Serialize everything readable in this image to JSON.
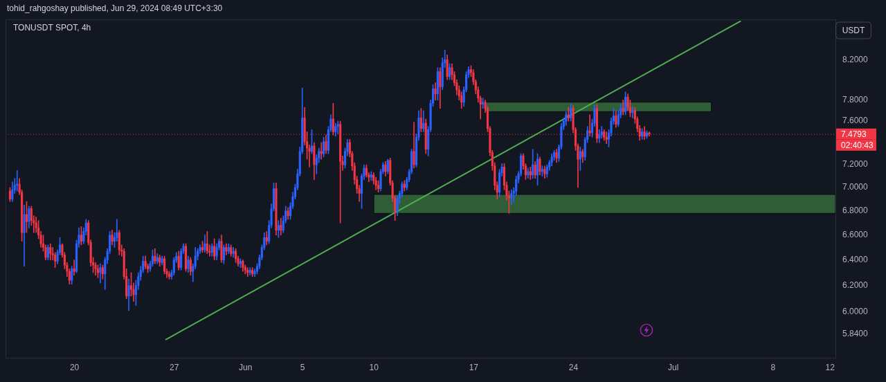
{
  "chart_data": {
    "type": "candlestick",
    "title": "TONUSDT SPOT, 4h",
    "ylabel": "USDT",
    "annotations": [
      "tohid_rahgoshay published, Jun 29, 2024 08:49 UTC+3:30",
      "02:40:43"
    ],
    "x": [
      "2024-05-15T11:30",
      "2024-05-15T15:30",
      "2024-05-15T19:30",
      "2024-05-15T23:30",
      "2024-05-16T03:30",
      "2024-05-16T07:30",
      "2024-05-16T11:30",
      "2024-05-16T15:30",
      "2024-05-16T19:30",
      "2024-05-16T23:30",
      "2024-05-17T03:30",
      "2024-05-17T07:30",
      "2024-05-17T11:30",
      "2024-05-17T15:30",
      "2024-05-17T19:30",
      "2024-05-17T23:30",
      "2024-05-18T03:30",
      "2024-05-18T07:30",
      "2024-05-18T11:30",
      "2024-05-18T15:30",
      "2024-05-18T19:30",
      "2024-05-18T23:30",
      "2024-05-19T03:30",
      "2024-05-19T07:30",
      "2024-05-19T11:30",
      "2024-05-19T15:30",
      "2024-05-19T19:30",
      "2024-05-19T23:30",
      "2024-05-20T03:30",
      "2024-05-20T07:30",
      "2024-05-20T11:30",
      "2024-05-20T15:30",
      "2024-05-20T19:30",
      "2024-05-20T23:30",
      "2024-05-21T03:30",
      "2024-05-21T07:30",
      "2024-05-21T11:30",
      "2024-05-21T15:30",
      "2024-05-21T19:30",
      "2024-05-21T23:30",
      "2024-05-22T03:30",
      "2024-05-22T07:30",
      "2024-05-22T11:30",
      "2024-05-22T15:30",
      "2024-05-22T19:30",
      "2024-05-22T23:30",
      "2024-05-23T03:30",
      "2024-05-23T07:30",
      "2024-05-23T11:30",
      "2024-05-23T15:30",
      "2024-05-23T19:30",
      "2024-05-23T23:30",
      "2024-05-24T03:30",
      "2024-05-24T07:30",
      "2024-05-24T11:30",
      "2024-05-24T15:30",
      "2024-05-24T19:30",
      "2024-05-24T23:30",
      "2024-05-25T03:30",
      "2024-05-25T07:30",
      "2024-05-25T11:30",
      "2024-05-25T15:30",
      "2024-05-25T19:30",
      "2024-05-25T23:30",
      "2024-05-26T03:30",
      "2024-05-26T07:30",
      "2024-05-26T11:30",
      "2024-05-26T15:30",
      "2024-05-26T19:30",
      "2024-05-26T23:30",
      "2024-05-27T03:30",
      "2024-05-27T07:30",
      "2024-05-27T11:30",
      "2024-05-27T15:30",
      "2024-05-27T19:30",
      "2024-05-27T23:30",
      "2024-05-28T03:30",
      "2024-05-28T07:30",
      "2024-05-28T11:30",
      "2024-05-28T15:30",
      "2024-05-28T19:30",
      "2024-05-28T23:30",
      "2024-05-29T03:30",
      "2024-05-29T07:30",
      "2024-05-29T11:30",
      "2024-05-29T15:30",
      "2024-05-29T19:30",
      "2024-05-29T23:30",
      "2024-05-30T03:30",
      "2024-05-30T07:30",
      "2024-05-30T11:30",
      "2024-05-30T15:30",
      "2024-05-30T19:30",
      "2024-05-30T23:30",
      "2024-05-31T03:30",
      "2024-05-31T07:30",
      "2024-05-31T11:30",
      "2024-05-31T15:30",
      "2024-05-31T19:30",
      "2024-05-31T23:30",
      "2024-06-01T03:30",
      "2024-06-01T07:30",
      "2024-06-01T11:30",
      "2024-06-01T15:30",
      "2024-06-01T19:30",
      "2024-06-01T23:30",
      "2024-06-02T03:30",
      "2024-06-02T07:30",
      "2024-06-02T11:30",
      "2024-06-02T15:30",
      "2024-06-02T19:30",
      "2024-06-02T23:30",
      "2024-06-03T03:30",
      "2024-06-03T07:30",
      "2024-06-03T11:30",
      "2024-06-03T15:30",
      "2024-06-03T19:30",
      "2024-06-03T23:30",
      "2024-06-04T03:30",
      "2024-06-04T07:30",
      "2024-06-04T11:30",
      "2024-06-04T15:30",
      "2024-06-04T19:30",
      "2024-06-04T23:30",
      "2024-06-05T03:30",
      "2024-06-05T07:30",
      "2024-06-05T11:30",
      "2024-06-05T15:30",
      "2024-06-05T19:30",
      "2024-06-05T23:30",
      "2024-06-06T03:30",
      "2024-06-06T07:30",
      "2024-06-06T11:30",
      "2024-06-06T15:30",
      "2024-06-06T19:30",
      "2024-06-06T23:30",
      "2024-06-07T03:30",
      "2024-06-07T07:30",
      "2024-06-07T11:30",
      "2024-06-07T15:30",
      "2024-06-07T19:30",
      "2024-06-07T23:30",
      "2024-06-08T03:30",
      "2024-06-08T07:30",
      "2024-06-08T11:30",
      "2024-06-08T15:30",
      "2024-06-08T19:30",
      "2024-06-08T23:30",
      "2024-06-09T03:30",
      "2024-06-09T07:30",
      "2024-06-09T11:30",
      "2024-06-09T15:30",
      "2024-06-09T19:30",
      "2024-06-09T23:30",
      "2024-06-10T03:30",
      "2024-06-10T07:30",
      "2024-06-10T11:30",
      "2024-06-10T15:30",
      "2024-06-10T19:30",
      "2024-06-10T23:30",
      "2024-06-11T03:30",
      "2024-06-11T07:30",
      "2024-06-11T11:30",
      "2024-06-11T15:30",
      "2024-06-11T19:30",
      "2024-06-11T23:30",
      "2024-06-12T03:30",
      "2024-06-12T07:30",
      "2024-06-12T11:30",
      "2024-06-12T15:30",
      "2024-06-12T19:30",
      "2024-06-12T23:30",
      "2024-06-13T03:30",
      "2024-06-13T07:30",
      "2024-06-13T11:30",
      "2024-06-13T15:30",
      "2024-06-13T19:30",
      "2024-06-13T23:30",
      "2024-06-14T03:30",
      "2024-06-14T07:30",
      "2024-06-14T11:30",
      "2024-06-14T15:30",
      "2024-06-14T19:30",
      "2024-06-14T23:30",
      "2024-06-15T03:30",
      "2024-06-15T07:30",
      "2024-06-15T11:30",
      "2024-06-15T15:30",
      "2024-06-15T19:30",
      "2024-06-15T23:30",
      "2024-06-16T03:30",
      "2024-06-16T07:30",
      "2024-06-16T11:30",
      "2024-06-16T15:30",
      "2024-06-16T19:30",
      "2024-06-16T23:30",
      "2024-06-17T03:30",
      "2024-06-17T07:30",
      "2024-06-17T11:30",
      "2024-06-17T15:30",
      "2024-06-17T19:30",
      "2024-06-17T23:30",
      "2024-06-18T03:30",
      "2024-06-18T07:30",
      "2024-06-18T11:30",
      "2024-06-18T15:30",
      "2024-06-18T19:30",
      "2024-06-18T23:30",
      "2024-06-19T03:30",
      "2024-06-19T07:30",
      "2024-06-19T11:30",
      "2024-06-19T15:30",
      "2024-06-19T19:30",
      "2024-06-19T23:30",
      "2024-06-20T03:30",
      "2024-06-20T07:30",
      "2024-06-20T11:30",
      "2024-06-20T15:30",
      "2024-06-20T19:30",
      "2024-06-20T23:30",
      "2024-06-21T03:30",
      "2024-06-21T07:30",
      "2024-06-21T11:30",
      "2024-06-21T15:30",
      "2024-06-21T19:30",
      "2024-06-21T23:30",
      "2024-06-22T03:30",
      "2024-06-22T07:30",
      "2024-06-22T11:30",
      "2024-06-22T15:30",
      "2024-06-22T19:30",
      "2024-06-22T23:30",
      "2024-06-23T03:30",
      "2024-06-23T07:30",
      "2024-06-23T11:30",
      "2024-06-23T15:30",
      "2024-06-23T19:30",
      "2024-06-23T23:30",
      "2024-06-24T03:30",
      "2024-06-24T07:30",
      "2024-06-24T11:30",
      "2024-06-24T15:30",
      "2024-06-24T19:30",
      "2024-06-24T23:30",
      "2024-06-25T03:30",
      "2024-06-25T07:30",
      "2024-06-25T11:30",
      "2024-06-25T15:30",
      "2024-06-25T19:30",
      "2024-06-25T23:30",
      "2024-06-26T03:30",
      "2024-06-26T07:30",
      "2024-06-26T11:30",
      "2024-06-26T15:30",
      "2024-06-26T19:30",
      "2024-06-26T23:30",
      "2024-06-27T03:30",
      "2024-06-27T07:30",
      "2024-06-27T11:30",
      "2024-06-27T15:30",
      "2024-06-27T19:30",
      "2024-06-27T23:30",
      "2024-06-28T03:30",
      "2024-06-28T07:30",
      "2024-06-28T11:30",
      "2024-06-28T15:30",
      "2024-06-28T19:30",
      "2024-06-28T23:30",
      "2024-06-29T03:30",
      "2024-06-29T07:30"
    ],
    "ohlc": [
      [
        6.97,
        7.0,
        6.88,
        6.9
      ],
      [
        6.9,
        7.05,
        6.88,
        6.98
      ],
      [
        6.98,
        7.08,
        6.95,
        7.02
      ],
      [
        7.02,
        7.15,
        6.97,
        7.03
      ],
      [
        7.03,
        7.08,
        6.94,
        6.96
      ],
      [
        6.96,
        6.98,
        6.55,
        6.62
      ],
      [
        6.62,
        6.85,
        6.35,
        6.77
      ],
      [
        6.77,
        6.88,
        6.62,
        6.71
      ],
      [
        6.71,
        6.84,
        6.66,
        6.82
      ],
      [
        6.82,
        6.84,
        6.68,
        6.72
      ],
      [
        6.72,
        6.76,
        6.62,
        6.7
      ],
      [
        6.7,
        6.75,
        6.62,
        6.66
      ],
      [
        6.66,
        6.72,
        6.57,
        6.6
      ],
      [
        6.6,
        6.63,
        6.5,
        6.53
      ],
      [
        6.53,
        6.6,
        6.47,
        6.5
      ],
      [
        6.5,
        6.52,
        6.4,
        6.42
      ],
      [
        6.42,
        6.52,
        6.4,
        6.5
      ],
      [
        6.5,
        6.53,
        6.4,
        6.45
      ],
      [
        6.45,
        6.5,
        6.4,
        6.44
      ],
      [
        6.44,
        6.46,
        6.34,
        6.39
      ],
      [
        6.39,
        6.48,
        6.37,
        6.46
      ],
      [
        6.46,
        6.58,
        6.44,
        6.52
      ],
      [
        6.52,
        6.53,
        6.42,
        6.44
      ],
      [
        6.44,
        6.46,
        6.33,
        6.36
      ],
      [
        6.36,
        6.38,
        6.27,
        6.31
      ],
      [
        6.31,
        6.33,
        6.21,
        6.24
      ],
      [
        6.24,
        6.35,
        6.21,
        6.33
      ],
      [
        6.33,
        6.4,
        6.28,
        6.31
      ],
      [
        6.31,
        6.56,
        6.3,
        6.53
      ],
      [
        6.53,
        6.66,
        6.5,
        6.6
      ],
      [
        6.6,
        6.67,
        6.52,
        6.55
      ],
      [
        6.55,
        6.66,
        6.53,
        6.63
      ],
      [
        6.63,
        6.73,
        6.6,
        6.7
      ],
      [
        6.7,
        6.72,
        6.52,
        6.54
      ],
      [
        6.54,
        6.56,
        6.35,
        6.38
      ],
      [
        6.38,
        6.42,
        6.3,
        6.36
      ],
      [
        6.36,
        6.38,
        6.28,
        6.33
      ],
      [
        6.33,
        6.36,
        6.26,
        6.3
      ],
      [
        6.3,
        6.37,
        6.22,
        6.34
      ],
      [
        6.34,
        6.36,
        6.25,
        6.29
      ],
      [
        6.29,
        6.42,
        6.17,
        6.4
      ],
      [
        6.4,
        6.49,
        6.37,
        6.47
      ],
      [
        6.47,
        6.63,
        6.45,
        6.6
      ],
      [
        6.6,
        6.64,
        6.52,
        6.55
      ],
      [
        6.55,
        6.62,
        6.5,
        6.58
      ],
      [
        6.58,
        6.73,
        6.55,
        6.62
      ],
      [
        6.62,
        6.64,
        6.44,
        6.48
      ],
      [
        6.48,
        6.52,
        6.43,
        6.47
      ],
      [
        6.47,
        6.49,
        6.25,
        6.27
      ],
      [
        6.27,
        6.33,
        6.1,
        6.12
      ],
      [
        6.12,
        6.25,
        6.01,
        6.2
      ],
      [
        6.2,
        6.3,
        6.12,
        6.17
      ],
      [
        6.17,
        6.22,
        6.08,
        6.13
      ],
      [
        6.13,
        6.24,
        6.05,
        6.2
      ],
      [
        6.2,
        6.3,
        6.17,
        6.27
      ],
      [
        6.27,
        6.35,
        6.24,
        6.32
      ],
      [
        6.32,
        6.43,
        6.3,
        6.39
      ],
      [
        6.39,
        6.43,
        6.33,
        6.35
      ],
      [
        6.35,
        6.37,
        6.3,
        6.33
      ],
      [
        6.33,
        6.39,
        6.31,
        6.37
      ],
      [
        6.37,
        6.48,
        6.35,
        6.43
      ],
      [
        6.43,
        6.49,
        6.37,
        6.39
      ],
      [
        6.39,
        6.45,
        6.37,
        6.42
      ],
      [
        6.42,
        6.44,
        6.35,
        6.38
      ],
      [
        6.38,
        6.43,
        6.36,
        6.41
      ],
      [
        6.41,
        6.43,
        6.29,
        6.31
      ],
      [
        6.31,
        6.33,
        6.26,
        6.29
      ],
      [
        6.29,
        6.31,
        6.25,
        6.27
      ],
      [
        6.27,
        6.32,
        6.25,
        6.3
      ],
      [
        6.3,
        6.42,
        6.28,
        6.4
      ],
      [
        6.4,
        6.46,
        6.38,
        6.43
      ],
      [
        6.43,
        6.47,
        6.32,
        6.34
      ],
      [
        6.34,
        6.49,
        6.32,
        6.47
      ],
      [
        6.47,
        6.53,
        6.45,
        6.51
      ],
      [
        6.51,
        6.53,
        6.31,
        6.33
      ],
      [
        6.33,
        6.43,
        6.3,
        6.4
      ],
      [
        6.4,
        6.42,
        6.28,
        6.31
      ],
      [
        6.31,
        6.37,
        6.23,
        6.35
      ],
      [
        6.35,
        6.5,
        6.33,
        6.43
      ],
      [
        6.43,
        6.49,
        6.4,
        6.47
      ],
      [
        6.47,
        6.52,
        6.45,
        6.5
      ],
      [
        6.5,
        6.55,
        6.46,
        6.48
      ],
      [
        6.48,
        6.6,
        6.46,
        6.53
      ],
      [
        6.53,
        6.63,
        6.45,
        6.47
      ],
      [
        6.47,
        6.52,
        6.43,
        6.46
      ],
      [
        6.46,
        6.53,
        6.43,
        6.51
      ],
      [
        6.51,
        6.57,
        6.4,
        6.43
      ],
      [
        6.43,
        6.53,
        6.4,
        6.5
      ],
      [
        6.5,
        6.57,
        6.48,
        6.55
      ],
      [
        6.55,
        6.6,
        6.38,
        6.4
      ],
      [
        6.4,
        6.52,
        6.37,
        6.5
      ],
      [
        6.5,
        6.53,
        6.44,
        6.47
      ],
      [
        6.47,
        6.53,
        6.45,
        6.5
      ],
      [
        6.5,
        6.52,
        6.43,
        6.45
      ],
      [
        6.45,
        6.5,
        6.42,
        6.47
      ],
      [
        6.47,
        6.49,
        6.38,
        6.41
      ],
      [
        6.41,
        6.43,
        6.35,
        6.37
      ],
      [
        6.37,
        6.41,
        6.34,
        6.39
      ],
      [
        6.39,
        6.4,
        6.31,
        6.34
      ],
      [
        6.34,
        6.36,
        6.29,
        6.32
      ],
      [
        6.32,
        6.34,
        6.27,
        6.3
      ],
      [
        6.3,
        6.34,
        6.28,
        6.32
      ],
      [
        6.32,
        6.34,
        6.27,
        6.29
      ],
      [
        6.29,
        6.33,
        6.27,
        6.31
      ],
      [
        6.31,
        6.37,
        6.29,
        6.35
      ],
      [
        6.35,
        6.44,
        6.33,
        6.42
      ],
      [
        6.42,
        6.52,
        6.4,
        6.5
      ],
      [
        6.5,
        6.62,
        6.48,
        6.58
      ],
      [
        6.58,
        6.63,
        6.52,
        6.55
      ],
      [
        6.55,
        6.72,
        6.53,
        6.68
      ],
      [
        6.68,
        6.86,
        6.66,
        6.82
      ],
      [
        6.82,
        7.04,
        6.8,
        6.99
      ],
      [
        6.99,
        7.04,
        6.6,
        6.64
      ],
      [
        6.64,
        6.72,
        6.58,
        6.68
      ],
      [
        6.68,
        6.74,
        6.6,
        6.64
      ],
      [
        6.64,
        6.76,
        6.62,
        6.72
      ],
      [
        6.72,
        6.84,
        6.7,
        6.8
      ],
      [
        6.8,
        6.83,
        6.73,
        6.76
      ],
      [
        6.76,
        6.87,
        6.73,
        6.84
      ],
      [
        6.84,
        6.96,
        6.82,
        6.92
      ],
      [
        6.92,
        7.03,
        6.9,
        7.0
      ],
      [
        7.0,
        7.16,
        6.98,
        7.12
      ],
      [
        7.12,
        7.36,
        7.1,
        7.32
      ],
      [
        7.32,
        7.92,
        7.3,
        7.63
      ],
      [
        7.63,
        7.73,
        7.38,
        7.41
      ],
      [
        7.41,
        7.5,
        7.25,
        7.35
      ],
      [
        7.35,
        7.38,
        7.18,
        7.32
      ],
      [
        7.32,
        7.52,
        7.3,
        7.37
      ],
      [
        7.37,
        7.4,
        7.07,
        7.2
      ],
      [
        7.2,
        7.29,
        7.12,
        7.26
      ],
      [
        7.26,
        7.35,
        7.22,
        7.32
      ],
      [
        7.32,
        7.4,
        7.25,
        7.3
      ],
      [
        7.3,
        7.45,
        7.27,
        7.41
      ],
      [
        7.41,
        7.47,
        7.3,
        7.33
      ],
      [
        7.33,
        7.55,
        7.3,
        7.52
      ],
      [
        7.52,
        7.66,
        7.5,
        7.62
      ],
      [
        7.62,
        7.77,
        7.47,
        7.5
      ],
      [
        7.5,
        7.58,
        7.46,
        7.55
      ],
      [
        7.55,
        7.6,
        7.48,
        7.57
      ],
      [
        7.57,
        7.6,
        6.7,
        7.23
      ],
      [
        7.23,
        7.28,
        7.15,
        7.2
      ],
      [
        7.2,
        7.35,
        7.17,
        7.32
      ],
      [
        7.32,
        7.43,
        7.28,
        7.4
      ],
      [
        7.4,
        7.43,
        7.27,
        7.3
      ],
      [
        7.3,
        7.32,
        7.15,
        7.19
      ],
      [
        7.19,
        7.22,
        7.03,
        7.07
      ],
      [
        7.07,
        7.1,
        6.95,
        6.99
      ],
      [
        6.99,
        7.02,
        6.88,
        6.95
      ],
      [
        6.95,
        7.12,
        6.82,
        7.1
      ],
      [
        7.1,
        7.2,
        7.07,
        7.17
      ],
      [
        7.17,
        7.2,
        7.09,
        7.11
      ],
      [
        7.11,
        7.13,
        7.05,
        7.09
      ],
      [
        7.09,
        7.14,
        7.06,
        7.11
      ],
      [
        7.11,
        7.13,
        7.03,
        7.06
      ],
      [
        7.06,
        7.09,
        6.98,
        7.02
      ],
      [
        7.02,
        7.06,
        6.96,
        6.99
      ],
      [
        6.99,
        7.16,
        6.97,
        7.14
      ],
      [
        7.14,
        7.22,
        7.12,
        7.2
      ],
      [
        7.2,
        7.23,
        7.1,
        7.14
      ],
      [
        7.14,
        7.25,
        7.12,
        7.24
      ],
      [
        7.24,
        7.26,
        7.02,
        7.04
      ],
      [
        7.04,
        7.06,
        6.88,
        6.91
      ],
      [
        6.91,
        6.93,
        6.72,
        6.8
      ],
      [
        6.8,
        6.93,
        6.76,
        6.91
      ],
      [
        6.91,
        6.97,
        6.86,
        6.95
      ],
      [
        6.95,
        7.05,
        6.92,
        7.03
      ],
      [
        7.03,
        7.06,
        6.97,
        7.0
      ],
      [
        7.0,
        7.09,
        6.98,
        7.07
      ],
      [
        7.07,
        7.16,
        7.05,
        7.14
      ],
      [
        7.14,
        7.34,
        7.12,
        7.32
      ],
      [
        7.32,
        7.59,
        7.17,
        7.2
      ],
      [
        7.2,
        7.48,
        7.18,
        7.45
      ],
      [
        7.45,
        7.7,
        7.42,
        7.63
      ],
      [
        7.63,
        7.72,
        7.5,
        7.53
      ],
      [
        7.53,
        7.7,
        7.5,
        7.58
      ],
      [
        7.58,
        7.62,
        7.3,
        7.34
      ],
      [
        7.34,
        7.55,
        7.28,
        7.52
      ],
      [
        7.52,
        7.8,
        7.5,
        7.77
      ],
      [
        7.77,
        7.95,
        7.74,
        7.91
      ],
      [
        7.91,
        7.97,
        7.8,
        7.86
      ],
      [
        7.86,
        8.12,
        7.8,
        8.08
      ],
      [
        8.08,
        8.12,
        7.72,
        7.93
      ],
      [
        7.93,
        8.22,
        7.9,
        8.17
      ],
      [
        8.17,
        8.3,
        8.12,
        8.2
      ],
      [
        8.2,
        8.25,
        8.0,
        8.03
      ],
      [
        8.03,
        8.16,
        8.0,
        8.12
      ],
      [
        8.12,
        8.16,
        8.0,
        8.05
      ],
      [
        8.05,
        8.08,
        7.94,
        7.97
      ],
      [
        7.97,
        8.0,
        7.85,
        7.9
      ],
      [
        7.9,
        7.94,
        7.8,
        7.84
      ],
      [
        7.84,
        7.88,
        7.72,
        7.78
      ],
      [
        7.78,
        7.93,
        7.74,
        7.9
      ],
      [
        7.9,
        8.08,
        7.88,
        8.05
      ],
      [
        8.05,
        8.13,
        8.02,
        8.1
      ],
      [
        8.1,
        8.14,
        8.03,
        8.07
      ],
      [
        8.07,
        8.1,
        7.95,
        7.98
      ],
      [
        7.98,
        8.0,
        7.86,
        7.9
      ],
      [
        7.9,
        7.93,
        7.78,
        7.82
      ],
      [
        7.82,
        7.84,
        7.62,
        7.76
      ],
      [
        7.76,
        7.82,
        7.72,
        7.78
      ],
      [
        7.78,
        7.8,
        7.68,
        7.72
      ],
      [
        7.72,
        7.74,
        7.5,
        7.53
      ],
      [
        7.53,
        7.55,
        7.28,
        7.31
      ],
      [
        7.31,
        7.33,
        7.15,
        7.19
      ],
      [
        7.19,
        7.22,
        6.98,
        7.02
      ],
      [
        7.02,
        7.05,
        6.9,
        6.96
      ],
      [
        6.96,
        7.16,
        6.92,
        7.13
      ],
      [
        7.13,
        7.21,
        7.1,
        7.18
      ],
      [
        7.18,
        7.21,
        6.98,
        7.02
      ],
      [
        7.02,
        7.05,
        6.89,
        6.93
      ],
      [
        6.93,
        6.97,
        6.78,
        6.91
      ],
      [
        6.91,
        6.98,
        6.85,
        6.95
      ],
      [
        6.95,
        7.0,
        6.88,
        6.97
      ],
      [
        6.97,
        7.1,
        6.93,
        7.07
      ],
      [
        7.07,
        7.14,
        7.04,
        7.12
      ],
      [
        7.12,
        7.3,
        7.1,
        7.28
      ],
      [
        7.28,
        7.3,
        7.16,
        7.19
      ],
      [
        7.19,
        7.21,
        7.07,
        7.11
      ],
      [
        7.11,
        7.17,
        7.08,
        7.14
      ],
      [
        7.14,
        7.18,
        7.07,
        7.11
      ],
      [
        7.11,
        7.34,
        7.08,
        7.2
      ],
      [
        7.2,
        7.23,
        7.08,
        7.11
      ],
      [
        7.11,
        7.3,
        7.02,
        7.25
      ],
      [
        7.25,
        7.27,
        7.11,
        7.14
      ],
      [
        7.14,
        7.19,
        7.1,
        7.16
      ],
      [
        7.16,
        7.19,
        7.08,
        7.12
      ],
      [
        7.12,
        7.2,
        7.09,
        7.18
      ],
      [
        7.18,
        7.24,
        7.15,
        7.22
      ],
      [
        7.22,
        7.3,
        7.19,
        7.27
      ],
      [
        7.27,
        7.33,
        7.24,
        7.31
      ],
      [
        7.31,
        7.34,
        7.22,
        7.26
      ],
      [
        7.26,
        7.38,
        7.23,
        7.36
      ],
      [
        7.36,
        7.58,
        7.34,
        7.55
      ],
      [
        7.55,
        7.63,
        7.52,
        7.6
      ],
      [
        7.6,
        7.69,
        7.56,
        7.66
      ],
      [
        7.66,
        7.73,
        7.6,
        7.63
      ],
      [
        7.63,
        7.76,
        7.6,
        7.72
      ],
      [
        7.72,
        7.75,
        7.49,
        7.52
      ],
      [
        7.52,
        7.54,
        7.33,
        7.37
      ],
      [
        7.37,
        7.39,
        7.0,
        7.25
      ],
      [
        7.25,
        7.36,
        7.15,
        7.32
      ],
      [
        7.32,
        7.34,
        7.22,
        7.27
      ],
      [
        7.27,
        7.45,
        7.24,
        7.43
      ],
      [
        7.43,
        7.55,
        7.4,
        7.51
      ],
      [
        7.51,
        7.66,
        7.46,
        7.49
      ],
      [
        7.49,
        7.62,
        7.45,
        7.58
      ],
      [
        7.58,
        7.75,
        7.55,
        7.72
      ],
      [
        7.72,
        7.76,
        7.4,
        7.44
      ],
      [
        7.44,
        7.52,
        7.4,
        7.47
      ],
      [
        7.47,
        7.55,
        7.44,
        7.5
      ],
      [
        7.5,
        7.52,
        7.42,
        7.45
      ],
      [
        7.45,
        7.5,
        7.39,
        7.43
      ],
      [
        7.43,
        7.52,
        7.36,
        7.49
      ],
      [
        7.49,
        7.63,
        7.46,
        7.6
      ],
      [
        7.6,
        7.72,
        7.57,
        7.65
      ],
      [
        7.65,
        7.7,
        7.54,
        7.57
      ],
      [
        7.57,
        7.7,
        7.55,
        7.66
      ],
      [
        7.66,
        7.76,
        7.63,
        7.72
      ],
      [
        7.72,
        7.8,
        7.66,
        7.69
      ],
      [
        7.69,
        7.88,
        7.66,
        7.83
      ],
      [
        7.83,
        7.86,
        7.7,
        7.73
      ],
      [
        7.73,
        7.8,
        7.64,
        7.68
      ],
      [
        7.68,
        7.74,
        7.63,
        7.7
      ],
      [
        7.7,
        7.73,
        7.58,
        7.62
      ],
      [
        7.62,
        7.64,
        7.5,
        7.53
      ],
      [
        7.53,
        7.56,
        7.42,
        7.46
      ],
      [
        7.46,
        7.53,
        7.43,
        7.5
      ],
      [
        7.5,
        7.55,
        7.43,
        7.46
      ],
      [
        7.46,
        7.51,
        7.44,
        7.49
      ],
      [
        7.49,
        7.5,
        7.46,
        7.4793
      ]
    ],
    "colors": [
      "#f23645",
      "#2962ff",
      "#2962ff",
      "#2962ff",
      "#f23645",
      "#f23645",
      "#2962ff",
      "#f23645",
      "#2962ff",
      "#f23645",
      "#f23645",
      "#f23645",
      "#f23645",
      "#f23645",
      "#f23645",
      "#f23645",
      "#2962ff",
      "#f23645",
      "#f23645",
      "#f23645",
      "#2962ff",
      "#2962ff",
      "#f23645",
      "#f23645",
      "#f23645",
      "#f23645",
      "#2962ff",
      "#f23645",
      "#2962ff",
      "#2962ff",
      "#f23645",
      "#2962ff",
      "#2962ff",
      "#f23645",
      "#f23645",
      "#f23645",
      "#f23645",
      "#f23645",
      "#2962ff",
      "#f23645",
      "#2962ff",
      "#2962ff",
      "#2962ff",
      "#f23645",
      "#2962ff",
      "#2962ff",
      "#f23645",
      "#f23645",
      "#f23645",
      "#f23645",
      "#2962ff",
      "#f23645",
      "#f23645",
      "#2962ff",
      "#2962ff",
      "#2962ff",
      "#2962ff",
      "#f23645",
      "#f23645",
      "#2962ff",
      "#2962ff",
      "#f23645",
      "#2962ff",
      "#f23645",
      "#2962ff",
      "#f23645",
      "#f23645",
      "#f23645",
      "#2962ff",
      "#2962ff",
      "#2962ff",
      "#f23645",
      "#2962ff",
      "#2962ff",
      "#f23645",
      "#2962ff",
      "#f23645",
      "#2962ff",
      "#2962ff",
      "#2962ff",
      "#2962ff",
      "#f23645",
      "#2962ff",
      "#f23645",
      "#f23645",
      "#2962ff",
      "#f23645",
      "#2962ff",
      "#2962ff",
      "#f23645",
      "#2962ff",
      "#f23645",
      "#2962ff",
      "#f23645",
      "#2962ff",
      "#f23645",
      "#f23645",
      "#2962ff",
      "#f23645",
      "#f23645",
      "#f23645",
      "#2962ff",
      "#f23645",
      "#2962ff",
      "#2962ff",
      "#2962ff",
      "#2962ff",
      "#2962ff",
      "#f23645",
      "#2962ff",
      "#2962ff",
      "#2962ff",
      "#f23645",
      "#2962ff",
      "#f23645",
      "#2962ff",
      "#2962ff",
      "#f23645",
      "#2962ff",
      "#2962ff",
      "#2962ff",
      "#2962ff",
      "#2962ff",
      "#2962ff",
      "#f23645",
      "#f23645",
      "#f23645",
      "#2962ff",
      "#f23645",
      "#2962ff",
      "#2962ff",
      "#f23645",
      "#2962ff",
      "#f23645",
      "#2962ff",
      "#2962ff",
      "#f23645",
      "#2962ff",
      "#2962ff",
      "#f23645",
      "#f23645",
      "#2962ff",
      "#2962ff",
      "#f23645",
      "#f23645",
      "#f23645",
      "#f23645",
      "#f23645",
      "#2962ff",
      "#2962ff",
      "#f23645",
      "#f23645",
      "#2962ff",
      "#f23645",
      "#f23645",
      "#f23645",
      "#2962ff",
      "#2962ff",
      "#f23645",
      "#2962ff",
      "#f23645",
      "#f23645",
      "#f23645",
      "#2962ff",
      "#2962ff",
      "#2962ff",
      "#f23645",
      "#2962ff",
      "#2962ff",
      "#2962ff",
      "#f23645",
      "#2962ff",
      "#2962ff",
      "#f23645",
      "#2962ff",
      "#f23645",
      "#2962ff",
      "#2962ff",
      "#2962ff",
      "#f23645",
      "#2962ff",
      "#f23645",
      "#2962ff",
      "#2962ff",
      "#f23645",
      "#2962ff",
      "#f23645",
      "#f23645",
      "#f23645",
      "#f23645",
      "#f23645",
      "#2962ff",
      "#2962ff",
      "#2962ff",
      "#f23645",
      "#f23645",
      "#f23645",
      "#f23645",
      "#f23645",
      "#2962ff",
      "#f23645",
      "#f23645",
      "#f23645",
      "#f23645",
      "#f23645",
      "#f23645",
      "#2962ff",
      "#2962ff",
      "#f23645",
      "#f23645",
      "#f23645",
      "#2962ff",
      "#2962ff",
      "#2962ff",
      "#2962ff",
      "#2962ff",
      "#f23645",
      "#f23645",
      "#2962ff",
      "#f23645",
      "#2962ff",
      "#f23645",
      "#2962ff",
      "#f23645",
      "#2962ff",
      "#f23645",
      "#2962ff",
      "#2962ff",
      "#2962ff",
      "#2962ff",
      "#f23645",
      "#2962ff",
      "#2962ff",
      "#2962ff",
      "#2962ff",
      "#f23645",
      "#2962ff",
      "#f23645",
      "#f23645",
      "#f23645",
      "#2962ff",
      "#f23645",
      "#2962ff",
      "#2962ff",
      "#f23645",
      "#2962ff",
      "#2962ff",
      "#f23645",
      "#2962ff",
      "#2962ff",
      "#f23645",
      "#f23645",
      "#2962ff",
      "#2962ff",
      "#2962ff",
      "#f23645",
      "#2962ff",
      "#2962ff",
      "#f23645",
      "#2962ff",
      "#f23645",
      "#f23645",
      "#2962ff",
      "#f23645",
      "#f23645",
      "#f23645",
      "#2962ff",
      "#f23645",
      "#2962ff",
      "#f23645"
    ],
    "series": [
      {
        "type": "line",
        "color": "#4caf50",
        "x": [
          "2024-05-26T10:00",
          "2024-07-05T17:00"
        ],
        "values": [
          5.8,
          8.6
        ]
      },
      {
        "type": "line",
        "color": "#2e5d37",
        "x": [
          "2024-06-17T18:00",
          "2024-07-03T16:00"
        ],
        "values": [
          null,
          null
        ],
        "lower": [
          7.69,
          7.69
        ],
        "upper": [
          7.78,
          7.78
        ]
      },
      {
        "type": "line",
        "color": "#2e5d37",
        "x": [
          "2024-06-10T00:00",
          "2024-07-12T09:00"
        ],
        "values": [
          null,
          null
        ],
        "lower": [
          6.78,
          6.78
        ],
        "upper": [
          6.94,
          6.94
        ]
      }
    ],
    "xlim": [
      "2024-05-15T04:00",
      "2024-07-12T09:00"
    ],
    "xticks": [
      {
        "value": "2024-05-20",
        "label": "20"
      },
      {
        "value": "2024-05-27",
        "label": "27"
      },
      {
        "value": "2024-06-01",
        "label": "Jun"
      },
      {
        "value": "2024-06-05",
        "label": "5"
      },
      {
        "value": "2024-06-10",
        "label": "10"
      },
      {
        "value": "2024-06-17",
        "label": "17"
      },
      {
        "value": "2024-06-24",
        "label": "24"
      },
      {
        "value": "2024-07-01",
        "label": "Jul"
      },
      {
        "value": "2024-07-08",
        "label": "8"
      },
      {
        "value": "2024-07-12",
        "label": "12"
      }
    ],
    "ylim": [
      5.67,
      8.62
    ],
    "yticks": [
      {
        "value": 5.84,
        "label": "5.8400"
      },
      {
        "value": 6,
        "label": "6.0000"
      },
      {
        "value": 6.2,
        "label": "6.2000"
      },
      {
        "value": 6.4,
        "label": "6.4000"
      },
      {
        "value": 6.6,
        "label": "6.6000"
      },
      {
        "value": 6.8,
        "label": "6.8000"
      },
      {
        "value": 7,
        "label": "7.0000"
      },
      {
        "value": 7.2,
        "label": "7.2000"
      },
      {
        "value": 7.6,
        "label": "7.6000"
      },
      {
        "value": 7.8,
        "label": "7.8000"
      },
      {
        "value": 8.2,
        "label": "8.2000"
      }
    ],
    "log": "y",
    "ref_lines": [
      {
        "axis": "y",
        "value": 7.4793,
        "label": "7.4793",
        "color": "#f23645",
        "line_style": "dotted"
      }
    ]
  }
}
